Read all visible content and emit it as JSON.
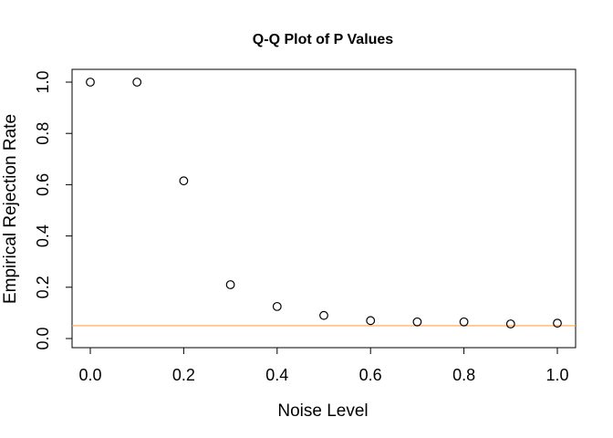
{
  "chart_data": {
    "type": "scatter",
    "title": "Q-Q Plot of P Values",
    "xlabel": "Noise Level",
    "ylabel": "Empirical Rejection Rate",
    "xlim": [
      0.0,
      1.0
    ],
    "ylim": [
      0.0,
      1.0
    ],
    "x_ticks": [
      "0.0",
      "0.2",
      "0.4",
      "0.6",
      "0.8",
      "1.0"
    ],
    "y_ticks": [
      "0.0",
      "0.2",
      "0.4",
      "0.6",
      "0.8",
      "1.0"
    ],
    "grid": false,
    "legend": "none",
    "series": [
      {
        "x": [
          0.0,
          0.1,
          0.2,
          0.3,
          0.4,
          0.5,
          0.6,
          0.7,
          0.8,
          0.9,
          1.0
        ],
        "y": [
          1.0,
          1.0,
          0.615,
          0.21,
          0.125,
          0.09,
          0.07,
          0.065,
          0.065,
          0.057,
          0.06
        ],
        "marker": "open-circle",
        "color": "#000000"
      }
    ],
    "reference_line": {
      "y": 0.05,
      "color": "#ffa54f"
    }
  }
}
